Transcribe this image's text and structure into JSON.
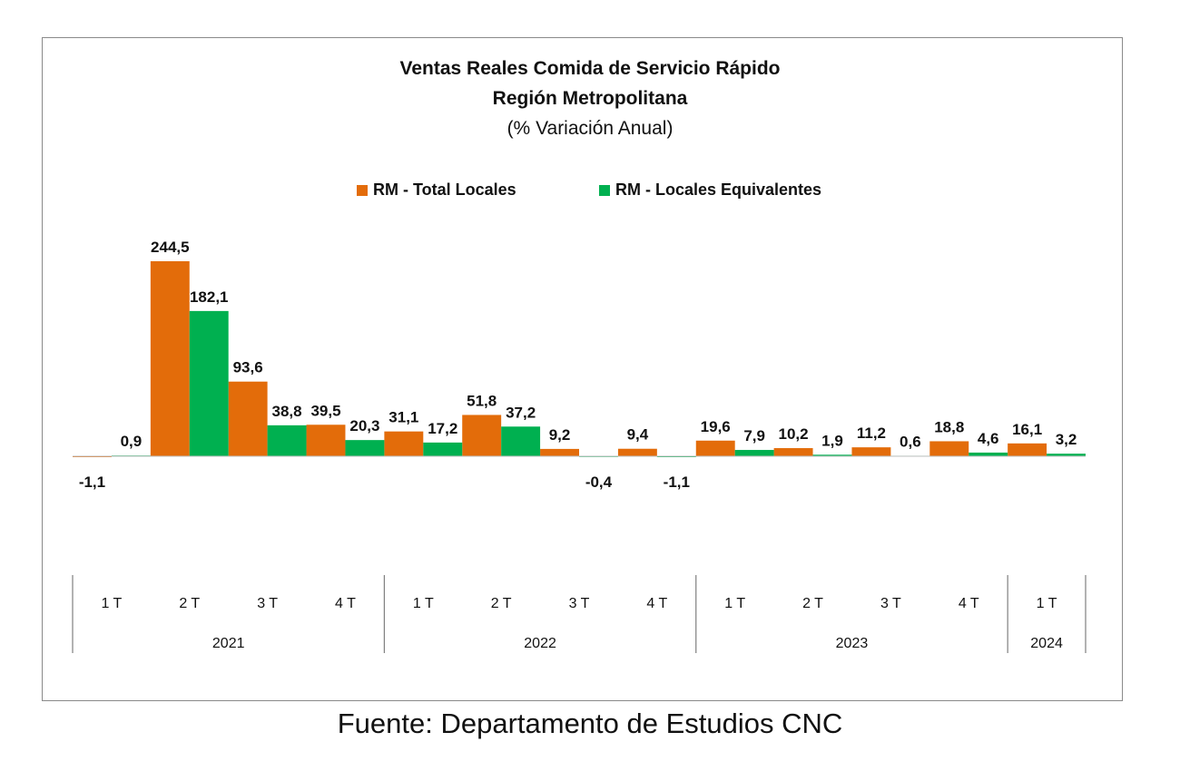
{
  "chart_data": {
    "type": "bar",
    "title": "Ventas Reales Comida de Servicio Rápido",
    "subtitle_line": "Región Metropolitana",
    "subtitle": "(% Variación Anual)",
    "legend_placement": "top-center",
    "grid": false,
    "ylim": [
      -70,
      270
    ],
    "categories": [
      "1 T",
      "2 T",
      "3 T",
      "4 T",
      "1 T",
      "2 T",
      "3 T",
      "4 T",
      "1 T",
      "2 T",
      "3 T",
      "4 T",
      "1 T"
    ],
    "groups": [
      {
        "label": "2021",
        "count": 4
      },
      {
        "label": "2022",
        "count": 4
      },
      {
        "label": "2023",
        "count": 4
      },
      {
        "label": "2024",
        "count": 1
      }
    ],
    "series": [
      {
        "name": "RM - Total Locales",
        "color": "#E36C0A",
        "values": [
          -1.1,
          244.5,
          93.6,
          39.5,
          31.1,
          51.8,
          9.2,
          9.4,
          19.6,
          10.2,
          11.2,
          18.8,
          16.1
        ],
        "labels": [
          "-1,1",
          "244,5",
          "93,6",
          "39,5",
          "31,1",
          "51,8",
          "9,2",
          "9,4",
          "19,6",
          "10,2",
          "11,2",
          "18,8",
          "16,1"
        ]
      },
      {
        "name": "RM - Locales Equivalentes",
        "color": "#00B050",
        "values": [
          0.9,
          182.1,
          38.8,
          20.3,
          17.2,
          37.2,
          -0.4,
          -1.1,
          7.9,
          1.9,
          0.6,
          4.6,
          3.2
        ],
        "labels": [
          "0,9",
          "182,1",
          "38,8",
          "20,3",
          "17,2",
          "37,2",
          "-0,4",
          "-1,1",
          "7,9",
          "1,9",
          "0,6",
          "4,6",
          "3,2"
        ]
      }
    ]
  },
  "source_note": "Fuente: Departamento de Estudios CNC"
}
